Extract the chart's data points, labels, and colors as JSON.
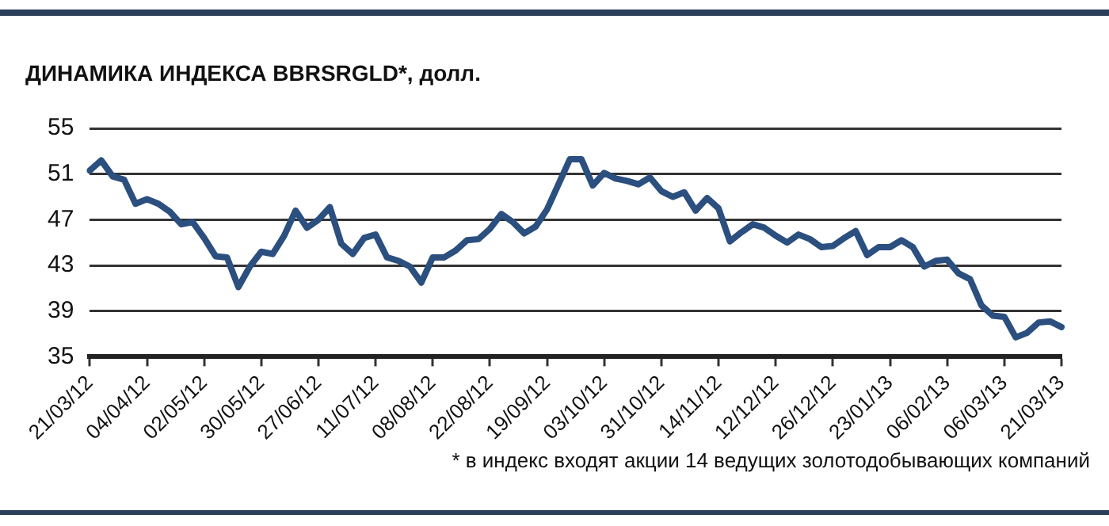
{
  "chart_data": {
    "type": "line",
    "title": "ДИНАМИКА ИНДЕКСА BBRSRGLD*, долл.",
    "annotations": [
      "* в индекс входят акции 14 ведущих золотодобывающих компаний"
    ],
    "categories": [
      "21/03/12",
      null,
      null,
      null,
      null,
      "04/04/12",
      null,
      null,
      null,
      null,
      "02/05/12",
      null,
      null,
      null,
      null,
      "30/05/12",
      null,
      null,
      null,
      null,
      "27/06/12",
      null,
      null,
      null,
      null,
      "11/07/12",
      null,
      null,
      null,
      null,
      "08/08/12",
      null,
      null,
      null,
      null,
      "22/08/12",
      null,
      null,
      null,
      null,
      "19/09/12",
      null,
      null,
      null,
      null,
      "03/10/12",
      null,
      null,
      null,
      null,
      "31/10/12",
      null,
      null,
      null,
      null,
      "14/11/12",
      null,
      null,
      null,
      null,
      "12/12/12",
      null,
      null,
      null,
      null,
      "26/12/12",
      null,
      null,
      null,
      null,
      "23/01/13",
      null,
      null,
      null,
      null,
      "06/02/13",
      null,
      null,
      null,
      null,
      "06/03/13",
      null,
      null,
      null,
      null,
      "21/03/13"
    ],
    "series": [
      {
        "color": "#2b4f7e",
        "values": [
          51.3,
          52.2,
          50.8,
          50.5,
          48.4,
          48.8,
          48.4,
          47.7,
          46.6,
          46.8,
          45.4,
          43.8,
          43.7,
          41.1,
          42.9,
          44.2,
          44.0,
          45.6,
          47.8,
          46.3,
          47.0,
          48.1,
          44.9,
          44.0,
          45.4,
          45.7,
          43.7,
          43.4,
          42.9,
          41.5,
          43.7,
          43.7,
          44.3,
          45.2,
          45.3,
          46.2,
          47.5,
          46.8,
          45.8,
          46.4,
          47.9,
          50.1,
          52.3,
          52.3,
          50.0,
          51.1,
          50.6,
          50.4,
          50.1,
          50.7,
          49.5,
          49.0,
          49.4,
          47.8,
          48.9,
          48.0,
          45.1,
          45.9,
          46.6,
          46.3,
          45.6,
          45.0,
          45.7,
          45.3,
          44.6,
          44.7,
          45.4,
          46.0,
          43.9,
          44.6,
          44.6,
          45.2,
          44.6,
          42.9,
          43.4,
          43.5,
          42.3,
          41.8,
          39.5,
          38.6,
          38.5,
          36.7,
          37.1,
          38.0,
          38.1,
          37.6
        ]
      }
    ],
    "ylim": [
      35,
      55
    ],
    "yticks": [
      35,
      39,
      43,
      47,
      51,
      55
    ],
    "grid": "y",
    "legend": false,
    "marker": "none",
    "line_style": "solid"
  }
}
